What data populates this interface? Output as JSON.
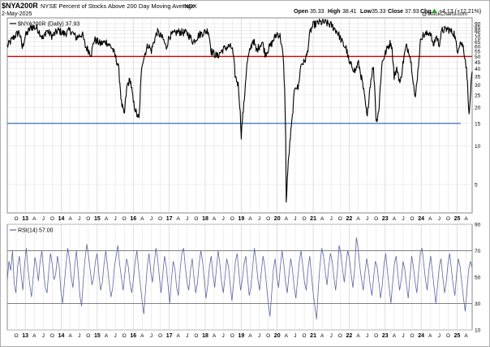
{
  "header": {
    "symbol": "$NYA200R",
    "description": "NYSE Percent of Stocks Above 200 Day Moving Average",
    "exchange": "INDX",
    "date": "2-May-2025",
    "quote": {
      "open_label": "Open",
      "open": "35.33",
      "high_label": "High",
      "high": "38.41",
      "low_label": "Low",
      "low": "35.33",
      "close_label": "Close",
      "close": "37.93",
      "chg_label": "Chg",
      "chg": "+4.13 (+12.21%)",
      "trend_arrow": "up-arrow"
    },
    "watermark": "@StockCharts.com"
  },
  "chart_data": [
    {
      "type": "line",
      "legend": "$NYA200R (Daily) 37.93",
      "legend_position": "top-left",
      "y_scale": "log",
      "ylim": [
        3,
        100
      ],
      "y_ticks": [
        5,
        10,
        15,
        20,
        25,
        30,
        35,
        40,
        45,
        50,
        55,
        60,
        65,
        70,
        75,
        80,
        85,
        90
      ],
      "grid": true,
      "horizontal_lines": [
        {
          "value": 50,
          "color": "#cc0000"
        },
        {
          "value": 15,
          "color": "#4a7ab8"
        }
      ],
      "x_range": [
        "2012-06",
        "2025-05"
      ],
      "x_tick_labels": [
        "J",
        "O",
        "13",
        "A",
        "J",
        "O",
        "14",
        "A",
        "J",
        "O",
        "15",
        "A",
        "J",
        "O",
        "16",
        "A",
        "J",
        "O",
        "17",
        "A",
        "J",
        "O",
        "18",
        "A",
        "J",
        "O",
        "19",
        "A",
        "J",
        "O",
        "20",
        "A",
        "J",
        "O",
        "21",
        "A",
        "J",
        "O",
        "22",
        "A",
        "J",
        "O",
        "23",
        "A",
        "J",
        "O",
        "24",
        "A",
        "J",
        "O",
        "25",
        "A"
      ],
      "series": [
        {
          "color": "#000000",
          "points": [
            [
              "2012-06",
              60
            ],
            [
              "2012-08",
              70
            ],
            [
              "2012-10",
              78
            ],
            [
              "2012-11",
              58
            ],
            [
              "2012-12",
              72
            ],
            [
              "2013-02",
              85
            ],
            [
              "2013-04",
              83
            ],
            [
              "2013-06",
              68
            ],
            [
              "2013-07",
              80
            ],
            [
              "2013-09",
              72
            ],
            [
              "2013-11",
              80
            ],
            [
              "2014-01",
              75
            ],
            [
              "2014-03",
              80
            ],
            [
              "2014-05",
              70
            ],
            [
              "2014-07",
              75
            ],
            [
              "2014-08",
              60
            ],
            [
              "2014-10",
              52
            ],
            [
              "2014-11",
              68
            ],
            [
              "2015-01",
              63
            ],
            [
              "2015-03",
              65
            ],
            [
              "2015-05",
              58
            ],
            [
              "2015-07",
              42
            ],
            [
              "2015-08",
              22
            ],
            [
              "2015-09",
              17
            ],
            [
              "2015-10",
              30
            ],
            [
              "2015-11",
              33
            ],
            [
              "2015-12",
              22
            ],
            [
              "2016-01",
              18
            ],
            [
              "2016-02",
              16
            ],
            [
              "2016-03",
              45
            ],
            [
              "2016-05",
              62
            ],
            [
              "2016-06",
              55
            ],
            [
              "2016-08",
              78
            ],
            [
              "2016-10",
              68
            ],
            [
              "2016-11",
              58
            ],
            [
              "2016-12",
              72
            ],
            [
              "2017-03",
              78
            ],
            [
              "2017-06",
              76
            ],
            [
              "2017-08",
              65
            ],
            [
              "2017-10",
              74
            ],
            [
              "2018-01",
              80
            ],
            [
              "2018-02",
              55
            ],
            [
              "2018-04",
              50
            ],
            [
              "2018-06",
              57
            ],
            [
              "2018-08",
              60
            ],
            [
              "2018-09",
              58
            ],
            [
              "2018-10",
              35
            ],
            [
              "2018-11",
              30
            ],
            [
              "2018-12",
              12
            ],
            [
              "2019-01",
              22
            ],
            [
              "2019-02",
              45
            ],
            [
              "2019-04",
              68
            ],
            [
              "2019-05",
              55
            ],
            [
              "2019-07",
              65
            ],
            [
              "2019-08",
              52
            ],
            [
              "2019-10",
              62
            ],
            [
              "2019-12",
              76
            ],
            [
              "2020-01",
              72
            ],
            [
              "2020-02",
              48
            ],
            [
              "2020-03",
              3.5
            ],
            [
              "2020-04",
              9
            ],
            [
              "2020-05",
              16
            ],
            [
              "2020-06",
              30
            ],
            [
              "2020-07",
              28
            ],
            [
              "2020-08",
              44
            ],
            [
              "2020-09",
              45
            ],
            [
              "2020-10",
              52
            ],
            [
              "2020-11",
              78
            ],
            [
              "2020-12",
              88
            ],
            [
              "2021-02",
              92
            ],
            [
              "2021-04",
              92
            ],
            [
              "2021-06",
              88
            ],
            [
              "2021-08",
              78
            ],
            [
              "2021-09",
              70
            ],
            [
              "2021-10",
              62
            ],
            [
              "2021-11",
              58
            ],
            [
              "2021-12",
              44
            ],
            [
              "2022-01",
              42
            ],
            [
              "2022-02",
              38
            ],
            [
              "2022-03",
              45
            ],
            [
              "2022-05",
              25
            ],
            [
              "2022-06",
              16
            ],
            [
              "2022-07",
              30
            ],
            [
              "2022-08",
              42
            ],
            [
              "2022-09",
              15
            ],
            [
              "2022-10",
              20
            ],
            [
              "2022-11",
              45
            ],
            [
              "2023-01",
              60
            ],
            [
              "2023-02",
              65
            ],
            [
              "2023-03",
              35
            ],
            [
              "2023-04",
              40
            ],
            [
              "2023-05",
              30
            ],
            [
              "2023-07",
              60
            ],
            [
              "2023-08",
              55
            ],
            [
              "2023-10",
              22
            ],
            [
              "2023-11",
              40
            ],
            [
              "2023-12",
              72
            ],
            [
              "2024-02",
              75
            ],
            [
              "2024-03",
              78
            ],
            [
              "2024-04",
              60
            ],
            [
              "2024-05",
              72
            ],
            [
              "2024-06",
              62
            ],
            [
              "2024-07",
              80
            ],
            [
              "2024-09",
              82
            ],
            [
              "2024-10",
              78
            ],
            [
              "2024-11",
              76
            ],
            [
              "2024-12",
              55
            ],
            [
              "2025-01",
              65
            ],
            [
              "2025-02",
              60
            ],
            [
              "2025-03",
              42
            ],
            [
              "2025-04",
              16
            ],
            [
              "2025-05",
              37.93
            ]
          ]
        }
      ]
    },
    {
      "type": "line",
      "legend": "RSI(14) 57.00",
      "legend_position": "top-left",
      "ylim": [
        10,
        90
      ],
      "y_ticks": [
        10,
        30,
        50,
        70,
        90
      ],
      "grid": true,
      "horizontal_lines": [
        {
          "value": 70,
          "color": "#808080"
        },
        {
          "value": 30,
          "color": "#808080"
        }
      ],
      "series": [
        {
          "color": "#5a66a0",
          "values": [
            48,
            62,
            55,
            70,
            45,
            38,
            58,
            66,
            52,
            40,
            60,
            72,
            56,
            44,
            35,
            50,
            65,
            58,
            47,
            62,
            70,
            55,
            42,
            38,
            55,
            68,
            60,
            48,
            52,
            66,
            58,
            40,
            30,
            45,
            60,
            72,
            63,
            50,
            42,
            58,
            70,
            54,
            36,
            28,
            48,
            64,
            75,
            66,
            55,
            44,
            50,
            62,
            68,
            52,
            40,
            46,
            60,
            70,
            58,
            45,
            35,
            42,
            58,
            66,
            74,
            60,
            50,
            40,
            52,
            64,
            58,
            46,
            38,
            48,
            62,
            70,
            56,
            44,
            32,
            22,
            40,
            58,
            68,
            54,
            46,
            60,
            72,
            64,
            50,
            38,
            52,
            66,
            58,
            44,
            30,
            48,
            62,
            56,
            42,
            36,
            55,
            68,
            72,
            58,
            46,
            40,
            55,
            64,
            50,
            38,
            45,
            60,
            70,
            62,
            48,
            34,
            44,
            58,
            66,
            52,
            42,
            56,
            70,
            60,
            46,
            38,
            50,
            64,
            58,
            44,
            32,
            46,
            62,
            68,
            54,
            40,
            48,
            60,
            66,
            50,
            36,
            42,
            58,
            72,
            62,
            48,
            40,
            54,
            66,
            58,
            44,
            30,
            20,
            38,
            56,
            64,
            50,
            42,
            58,
            70,
            60,
            46,
            38,
            52,
            64,
            56,
            42,
            34,
            48,
            62,
            70,
            58,
            46,
            40,
            56,
            66,
            52,
            38,
            28,
            18,
            42,
            60,
            72,
            66,
            54,
            44,
            58,
            68,
            62,
            50,
            40,
            54,
            74,
            68,
            56,
            46,
            60,
            70,
            64,
            52,
            42,
            56,
            80,
            72,
            58,
            48,
            40,
            54,
            64,
            56,
            44,
            36,
            50,
            62,
            58,
            46,
            34,
            44,
            60,
            68,
            54,
            42,
            30,
            46,
            60,
            66,
            52,
            40,
            48,
            62,
            56,
            44,
            34,
            50,
            66,
            58,
            46,
            38,
            54,
            68,
            72,
            60,
            48,
            40,
            56,
            66,
            54,
            42,
            30,
            44,
            58,
            64,
            50,
            38,
            46,
            60,
            68,
            56,
            44,
            36,
            52,
            64,
            58,
            46,
            34,
            24,
            40,
            56,
            62,
            57
          ]
        }
      ]
    }
  ]
}
